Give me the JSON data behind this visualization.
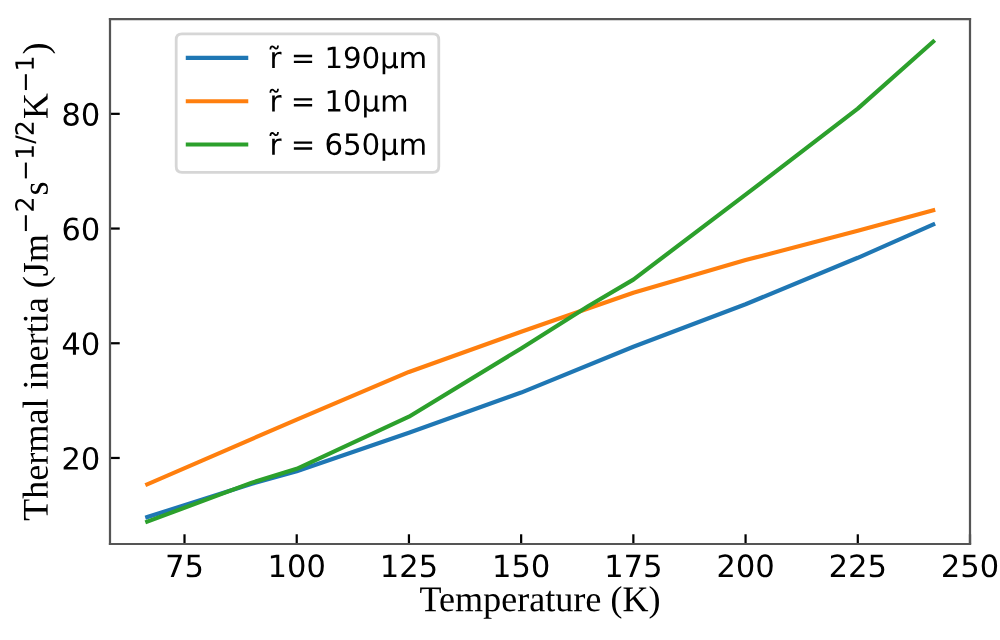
{
  "chart_data": {
    "type": "line",
    "xlabel": "Temperature (K)",
    "ylabel": "Thermal inertia (Jm$^{−2}$s$^{−1/2}$K$^{−1}$)",
    "xlim": [
      58.4,
      250
    ],
    "ylim": [
      5,
      96.5
    ],
    "xticks": [
      75,
      100,
      125,
      150,
      175,
      200,
      225,
      250
    ],
    "yticks": [
      20,
      40,
      60,
      80
    ],
    "grid": false,
    "legend": "top left",
    "marker": "none",
    "line_style": "solid",
    "series": [
      {
        "name": "r̃ = 190μm",
        "color": "#1f77b4",
        "x": [
          66.7,
          90,
          100,
          125,
          150,
          175,
          200,
          225,
          241.8
        ],
        "values": [
          9.7,
          15.5,
          17.7,
          24.4,
          31.4,
          39.4,
          46.8,
          54.9,
          60.7
        ]
      },
      {
        "name": "r̃ = 10μm",
        "color": "#ff7f0e",
        "x": [
          66.7,
          100,
          125,
          150,
          175,
          200,
          225,
          241.8
        ],
        "values": [
          15.4,
          26.7,
          35,
          42,
          48.8,
          54.5,
          59.6,
          63.2
        ]
      },
      {
        "name": "r̃ = 650μm",
        "color": "#2ca02c",
        "x": [
          66.7,
          90,
          100,
          125,
          150,
          165,
          175,
          200,
          225,
          241.8
        ],
        "values": [
          8.9,
          15.7,
          18.1,
          27.2,
          39.1,
          46.5,
          51.1,
          65.9,
          80.9,
          92.6
        ]
      }
    ]
  }
}
